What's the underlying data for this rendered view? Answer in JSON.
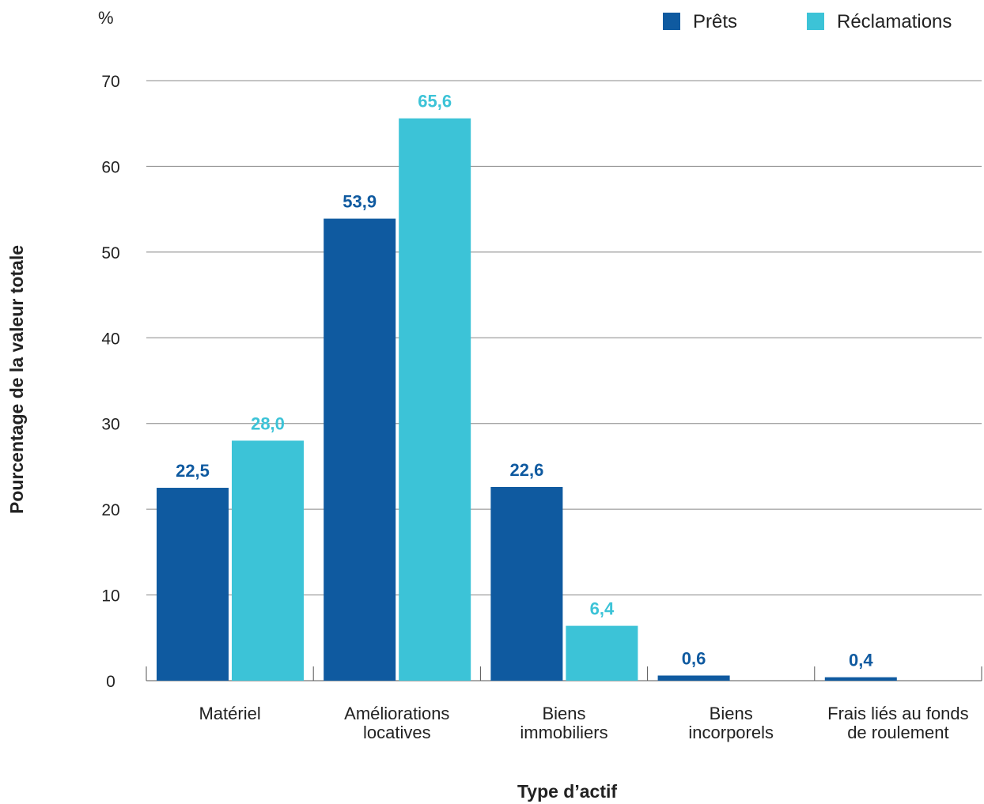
{
  "chart_data": {
    "type": "bar",
    "unit": "%",
    "ylabel": "Pourcentage de la valeur totale",
    "xlabel": "Type d’actif",
    "ylim": [
      0,
      70
    ],
    "yticks": [
      0,
      10,
      20,
      30,
      40,
      50,
      60,
      70
    ],
    "grid": true,
    "legend_position": "top-right",
    "categories": [
      [
        "Matériel"
      ],
      [
        "Améliorations",
        "locatives"
      ],
      [
        "Biens",
        "immobiliers"
      ],
      [
        "Biens",
        "incorporels"
      ],
      [
        "Frais liés au fonds",
        "de roulement"
      ]
    ],
    "series": [
      {
        "name": "Prêts",
        "color": "#0f5aa0",
        "values": [
          22.5,
          53.9,
          22.6,
          0.6,
          0.4
        ],
        "labels": [
          "22,5",
          "53,9",
          "22,6",
          "0,6",
          "0,4"
        ]
      },
      {
        "name": "Réclamations",
        "color": "#3cc3d7",
        "values": [
          28.0,
          65.6,
          6.4,
          null,
          null
        ],
        "labels": [
          "28,0",
          "65,6",
          "6,4",
          "",
          ""
        ]
      }
    ]
  }
}
